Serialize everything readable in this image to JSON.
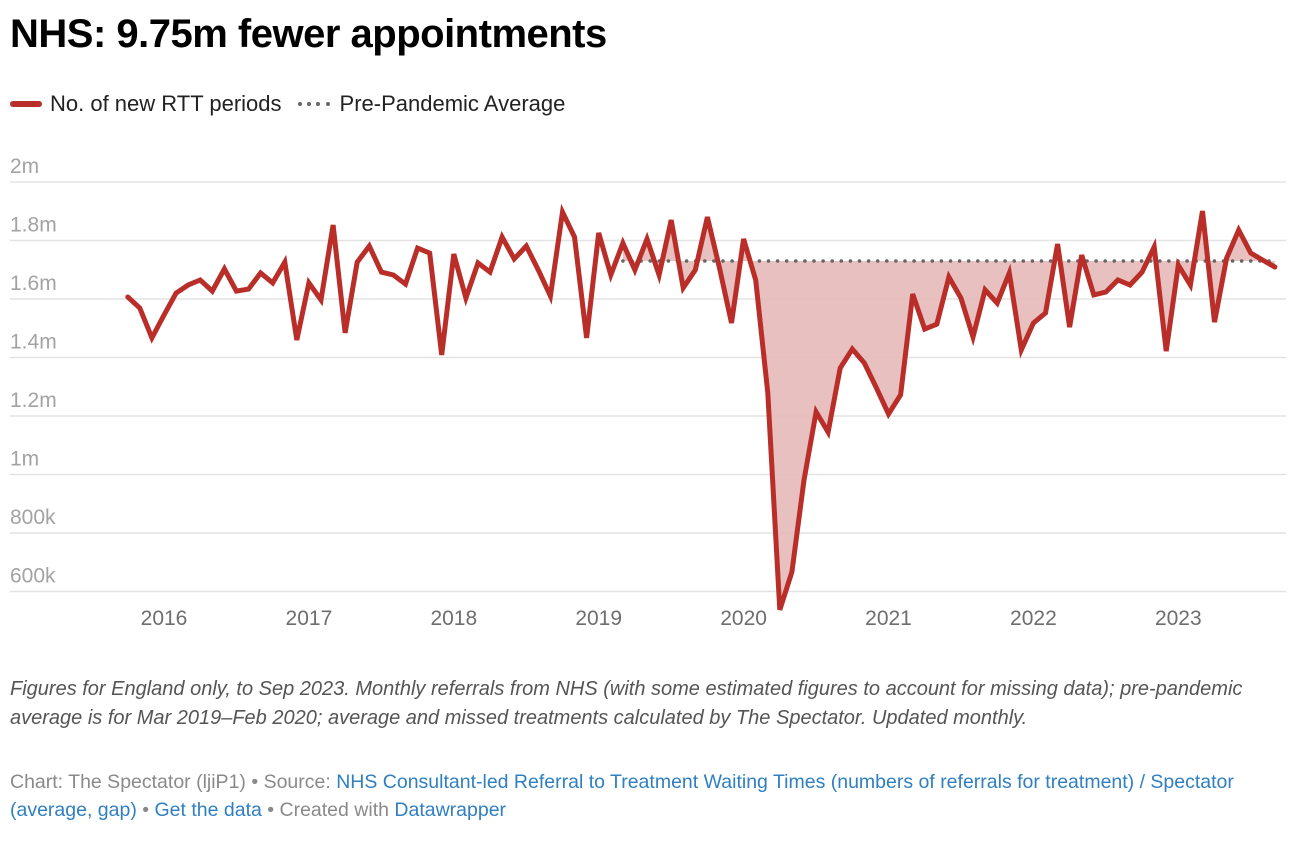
{
  "title": "NHS: 9.75m fewer appointments",
  "legend": [
    {
      "label": "No. of new RTT periods",
      "style": "line",
      "color": "#b92e28"
    },
    {
      "label": "Pre-Pandemic Average",
      "style": "dotted",
      "color": "#666666"
    }
  ],
  "chart_data": {
    "type": "line",
    "title": "NHS: 9.75m fewer appointments",
    "xlabel": "",
    "ylabel": "",
    "ylim": [
      500000,
      2000000
    ],
    "y_ticks": [
      {
        "value": 2000000,
        "label": "2m"
      },
      {
        "value": 1800000,
        "label": "1.8m"
      },
      {
        "value": 1600000,
        "label": "1.6m"
      },
      {
        "value": 1400000,
        "label": "1.4m"
      },
      {
        "value": 1200000,
        "label": "1.2m"
      },
      {
        "value": 1000000,
        "label": "1m"
      },
      {
        "value": 800000,
        "label": "800k"
      },
      {
        "value": 600000,
        "label": "600k"
      }
    ],
    "x_ticks": [
      "2016",
      "2017",
      "2018",
      "2019",
      "2020",
      "2021",
      "2022",
      "2023"
    ],
    "x_start": "Oct 2015",
    "x_end": "Sep 2023",
    "grid": true,
    "legend_position": "top-left",
    "series": [
      {
        "name": "No. of new RTT periods",
        "color": "#b92e28",
        "start_month": "2015-10",
        "values": [
          1607000,
          1569000,
          1467000,
          1545000,
          1620000,
          1648000,
          1665000,
          1627000,
          1703000,
          1627000,
          1634000,
          1689000,
          1655000,
          1726000,
          1460000,
          1655000,
          1597000,
          1853000,
          1484000,
          1726000,
          1781000,
          1692000,
          1682000,
          1651000,
          1774000,
          1757000,
          1409000,
          1754000,
          1603000,
          1723000,
          1692000,
          1812000,
          1737000,
          1781000,
          1699000,
          1610000,
          1897000,
          1812000,
          1467000,
          1826000,
          1682000,
          1791000,
          1699000,
          1805000,
          1682000,
          1870000,
          1638000,
          1699000,
          1880000,
          1706000,
          1518000,
          1805000,
          1665000,
          1279000,
          537000,
          667000,
          981000,
          1214000,
          1145000,
          1364000,
          1429000,
          1381000,
          1296000,
          1207000,
          1272000,
          1617000,
          1497000,
          1514000,
          1675000,
          1603000,
          1470000,
          1631000,
          1586000,
          1689000,
          1426000,
          1518000,
          1552000,
          1788000,
          1504000,
          1750000,
          1614000,
          1624000,
          1665000,
          1648000,
          1692000,
          1778000,
          1422000,
          1716000,
          1648000,
          1901000,
          1521000,
          1740000,
          1836000,
          1757000,
          1733000,
          1709000
        ]
      },
      {
        "name": "Pre-Pandemic Average",
        "color": "#666666",
        "value": 1730000,
        "from_month": "2019-03",
        "to_month": "2023-09"
      }
    ],
    "gap_fill_color": "#e5b9b9"
  },
  "notes": "Figures for England only, to Sep 2023. Monthly referrals from NHS (with some estimated figures to account for missing data); pre-pandemic average is for Mar 2019–Feb 2020; average and missed treatments calculated by The Spectator. Updated monthly.",
  "byline": {
    "chart_prefix": "Chart: The Spectator (ljiP1) • Source: ",
    "source_link": "NHS Consultant-led Referral to Treatment Waiting Times (numbers of referrals for treatment) / Spectator (average, gap)",
    "sep1": " • ",
    "data_link": "Get the data",
    "sep2": " • Created with ",
    "dw_link": "Datawrapper"
  }
}
